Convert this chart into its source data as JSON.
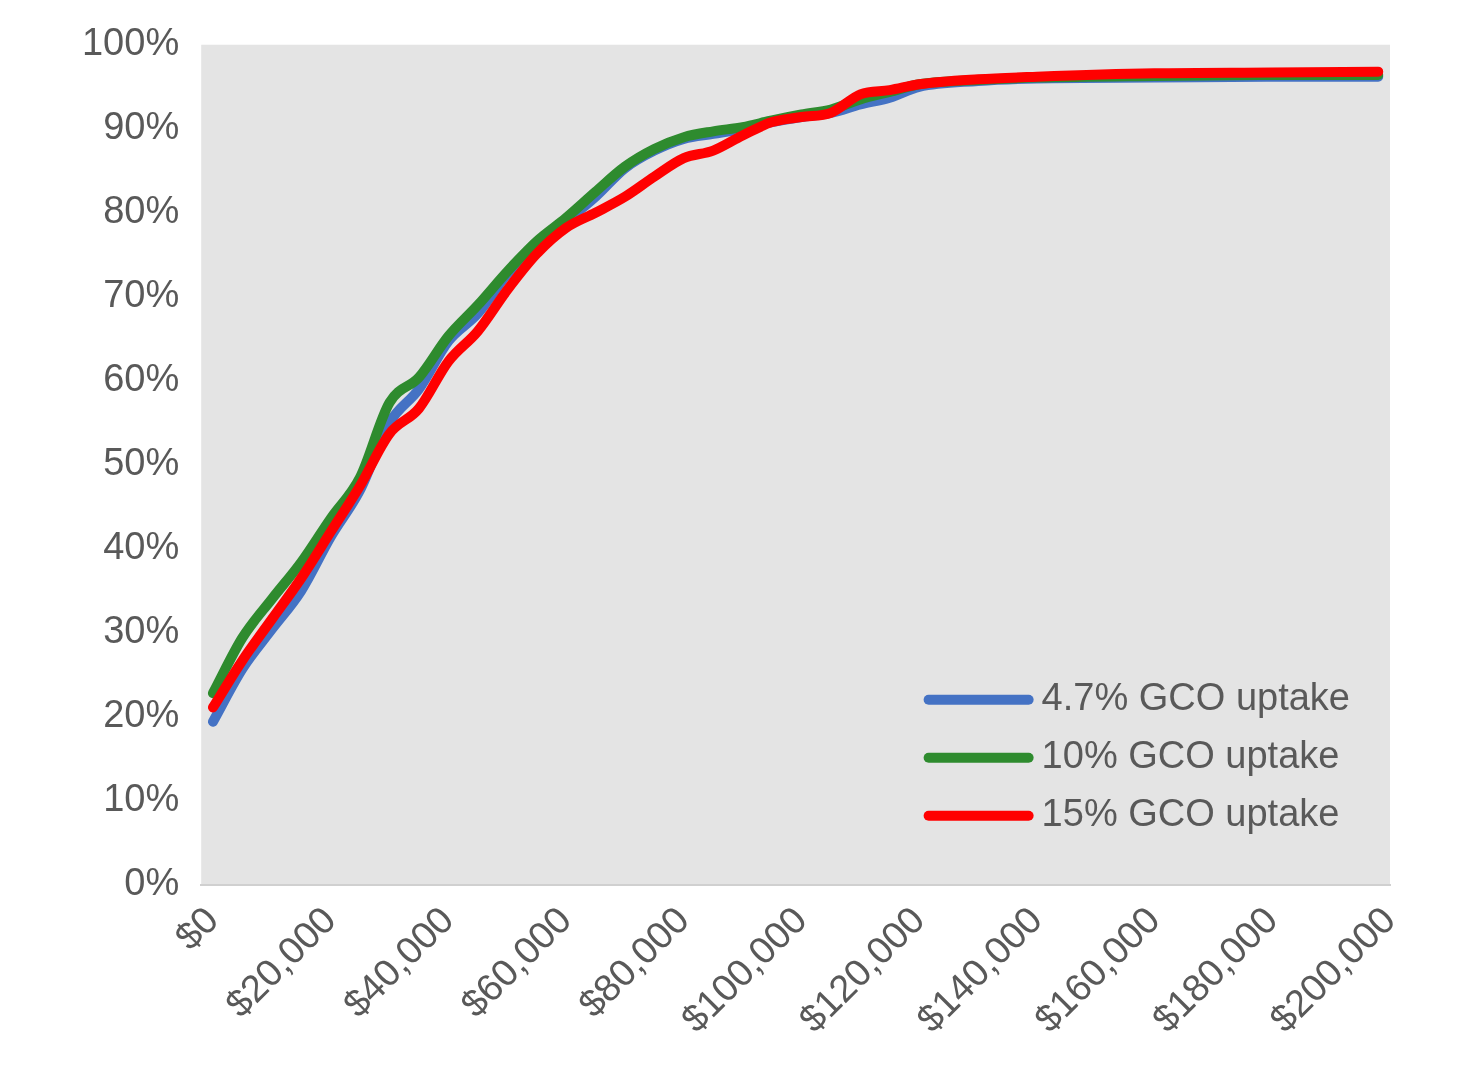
{
  "chart_data": {
    "type": "line",
    "x": [
      0,
      5000,
      10000,
      15000,
      20000,
      25000,
      30000,
      35000,
      40000,
      45000,
      50000,
      55000,
      60000,
      65000,
      70000,
      75000,
      80000,
      85000,
      90000,
      95000,
      100000,
      105000,
      110000,
      115000,
      120000,
      130000,
      140000,
      160000,
      180000,
      198000
    ],
    "series": [
      {
        "name": "4.7% GCO uptake",
        "color": "#4472c4",
        "values": [
          19.4,
          25.7,
          30.4,
          35,
          41.4,
          47,
          55,
          59,
          64.7,
          68,
          72.7,
          76.3,
          79,
          81.9,
          85.3,
          87.4,
          88.8,
          89.4,
          90,
          90.8,
          91.4,
          91.9,
          92.9,
          93.7,
          95,
          95.7,
          96,
          96.1,
          96.2,
          96.2
        ]
      },
      {
        "name": "10% GCO uptake",
        "color": "#2e8b2e",
        "values": [
          22.8,
          29.4,
          34,
          38.4,
          43.6,
          48.5,
          57.4,
          60.4,
          65.3,
          69,
          73,
          76.6,
          79.4,
          82.5,
          85.5,
          87.6,
          89,
          89.7,
          90.2,
          91,
          91.7,
          92.3,
          93.5,
          94.4,
          95.3,
          95.8,
          96.1,
          96.3,
          96.4,
          96.4
        ]
      },
      {
        "name": "15% GCO uptake",
        "color": "#ff0000",
        "values": [
          21.1,
          26.7,
          31.6,
          36.5,
          42,
          47.5,
          53.7,
          56.7,
          62.3,
          65.9,
          70.8,
          75.1,
          78.2,
          80,
          81.9,
          84.3,
          86.5,
          87.4,
          89.2,
          90.8,
          91.4,
          91.9,
          94.1,
          94.6,
          95.3,
          95.9,
          96.2,
          96.6,
          96.7,
          96.8
        ]
      }
    ],
    "xlim": [
      -2000,
      200000
    ],
    "xticks": [
      {
        "value": 0,
        "label": "$0"
      },
      {
        "value": 20000,
        "label": "$20,000"
      },
      {
        "value": 40000,
        "label": "$40,000"
      },
      {
        "value": 60000,
        "label": "$60,000"
      },
      {
        "value": 80000,
        "label": "$80,000"
      },
      {
        "value": 100000,
        "label": "$100,000"
      },
      {
        "value": 120000,
        "label": "$120,000"
      },
      {
        "value": 140000,
        "label": "$140,000"
      },
      {
        "value": 160000,
        "label": "$160,000"
      },
      {
        "value": 180000,
        "label": "$180,000"
      },
      {
        "value": 200000,
        "label": "$200,000"
      }
    ],
    "ylim": [
      0,
      100
    ],
    "yticks": [
      {
        "value": 0,
        "label": "0%"
      },
      {
        "value": 10,
        "label": "10%"
      },
      {
        "value": 20,
        "label": "20%"
      },
      {
        "value": 30,
        "label": "30%"
      },
      {
        "value": 40,
        "label": "40%"
      },
      {
        "value": 50,
        "label": "50%"
      },
      {
        "value": 60,
        "label": "60%"
      },
      {
        "value": 70,
        "label": "70%"
      },
      {
        "value": 80,
        "label": "80%"
      },
      {
        "value": 90,
        "label": "90%"
      },
      {
        "value": 100,
        "label": "100%"
      }
    ],
    "grid": false,
    "legend": "bottom right",
    "marker": "none",
    "line_style": "solid"
  }
}
